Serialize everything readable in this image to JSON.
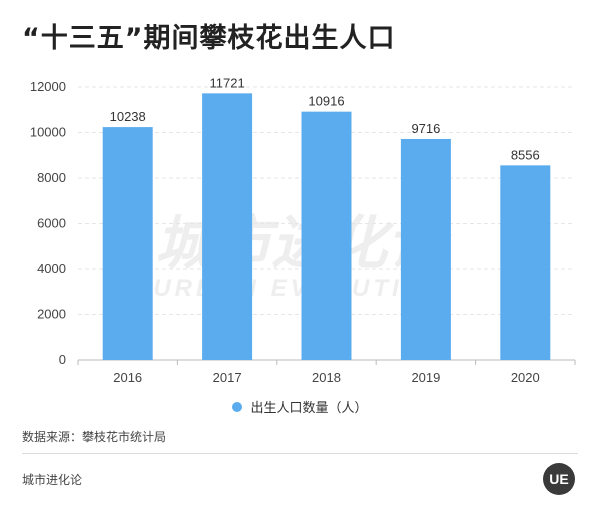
{
  "title": "“十三五”期间攀枝花出生人口",
  "watermark": {
    "cn": "城市进化论",
    "en": "URBAN EVOLUTION"
  },
  "source": "数据来源：攀枝花市统计局",
  "footer": {
    "brand": "城市进化论",
    "logo_text": "UE"
  },
  "colors": {
    "bar": "#5aacee",
    "grid": "#e6e6e6",
    "axis": "#bbbbbb"
  },
  "chart_data": {
    "type": "bar",
    "title": "“十三五”期间攀枝花出生人口",
    "categories": [
      "2016",
      "2017",
      "2018",
      "2019",
      "2020"
    ],
    "series": [
      {
        "name": "出生人口数量（人）",
        "values": [
          10238,
          11721,
          10916,
          9716,
          8556
        ]
      }
    ],
    "ylim": [
      0,
      12000
    ],
    "yticks": [
      0,
      2000,
      4000,
      6000,
      8000,
      10000,
      12000
    ],
    "grid": true,
    "legend": "bottom-center"
  }
}
